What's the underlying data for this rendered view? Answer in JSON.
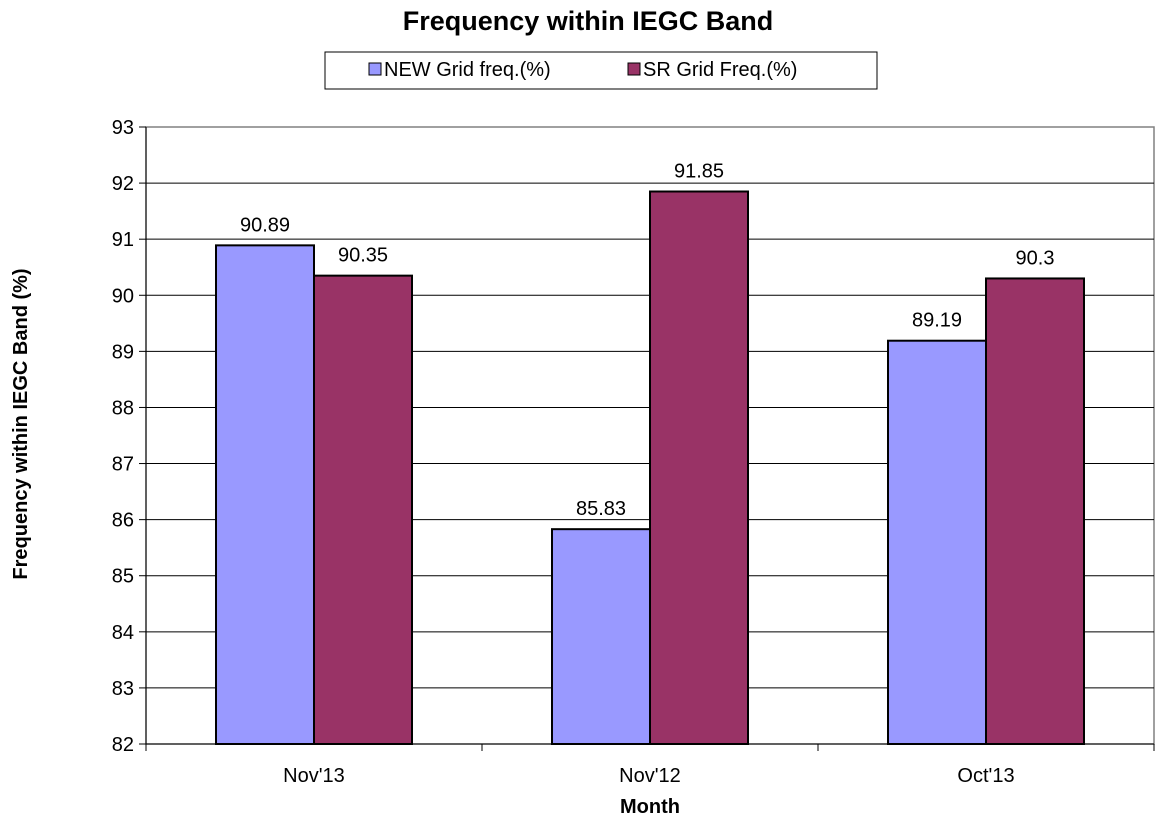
{
  "chart_data": {
    "type": "bar",
    "title": "Frequency within IEGC Band",
    "xlabel": "Month",
    "ylabel": "Frequency within IEGC Band (%)",
    "categories": [
      "Nov'13",
      "Nov'12",
      "Oct'13"
    ],
    "series": [
      {
        "name": "NEW Grid freq.(%)",
        "values": [
          90.89,
          85.83,
          89.19
        ],
        "color": "#9999ff"
      },
      {
        "name": "SR Grid Freq.(%)",
        "values": [
          90.35,
          91.85,
          90.3
        ],
        "color": "#993366"
      }
    ],
    "data_labels": [
      [
        "90.89",
        "85.83",
        "89.19"
      ],
      [
        "90.35",
        "91.85",
        "90.3"
      ]
    ],
    "ylim": [
      82,
      93
    ],
    "yticks": [
      "82",
      "83",
      "84",
      "85",
      "86",
      "87",
      "88",
      "89",
      "90",
      "91",
      "92",
      "93"
    ],
    "grid": true,
    "legend_position": "top"
  }
}
